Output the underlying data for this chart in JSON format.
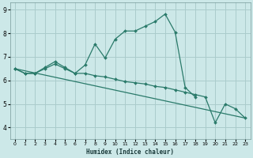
{
  "xlabel": "Humidex (Indice chaleur)",
  "bg_color": "#cce8e8",
  "grid_color": "#aacccc",
  "line_color": "#2a7a6a",
  "lines": [
    {
      "x": [
        0,
        1,
        2,
        3,
        4,
        5,
        6,
        7,
        8,
        9,
        10,
        11,
        12,
        13,
        14,
        15,
        16,
        17,
        18
      ],
      "y": [
        6.5,
        6.3,
        6.3,
        6.55,
        6.8,
        6.55,
        6.3,
        6.65,
        7.55,
        6.95,
        7.75,
        8.1,
        8.1,
        8.3,
        8.5,
        8.82,
        8.05,
        5.7,
        5.3
      ],
      "marker": true
    },
    {
      "x": [
        0,
        1,
        2,
        3,
        4,
        5,
        6,
        7,
        8,
        9,
        10,
        11,
        12,
        13,
        14,
        15,
        16,
        17,
        18,
        19,
        20,
        21,
        22,
        23
      ],
      "y": [
        6.5,
        6.3,
        6.3,
        6.5,
        6.7,
        6.5,
        6.3,
        6.3,
        6.2,
        6.15,
        6.05,
        5.95,
        5.9,
        5.85,
        5.75,
        5.7,
        5.6,
        5.5,
        5.4,
        5.3,
        4.2,
        5.0,
        4.8,
        4.4
      ],
      "marker": true
    },
    {
      "x": [
        0,
        23
      ],
      "y": [
        6.5,
        4.4
      ],
      "marker": false
    }
  ],
  "xlim": [
    -0.5,
    23.5
  ],
  "ylim": [
    3.5,
    9.3
  ],
  "xticks": [
    0,
    1,
    2,
    3,
    4,
    5,
    6,
    7,
    8,
    9,
    10,
    11,
    12,
    13,
    14,
    15,
    16,
    17,
    18,
    19,
    20,
    21,
    22,
    23
  ],
  "yticks": [
    4,
    5,
    6,
    7,
    8,
    9
  ]
}
